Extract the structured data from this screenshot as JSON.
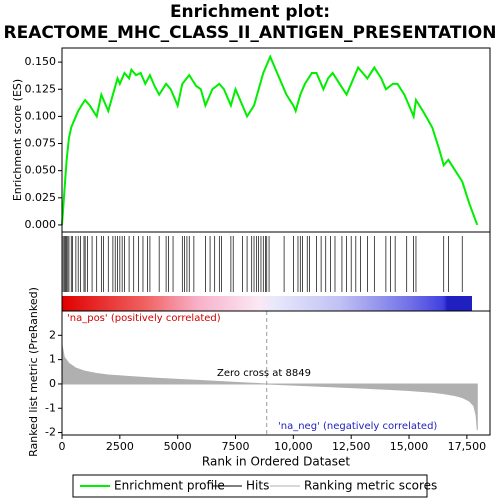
{
  "chart_data": [
    {
      "type": "line",
      "title": [
        "Enrichment plot:",
        "REACTOME_MHC_CLASS_II_ANTIGEN_PRESENTATION"
      ],
      "ylabel": "Enrichment score (ES)",
      "x": [
        0,
        100,
        200,
        300,
        400,
        500,
        700,
        900,
        1000,
        1200,
        1500,
        1700,
        1800,
        2000,
        2200,
        2400,
        2500,
        2700,
        2900,
        3000,
        3200,
        3400,
        3600,
        3800,
        4000,
        4200,
        4500,
        4700,
        5000,
        5200,
        5500,
        5800,
        6000,
        6200,
        6500,
        6800,
        7000,
        7300,
        7500,
        7800,
        8000,
        8300,
        8500,
        8700,
        8900,
        9000,
        9300,
        9700,
        10000,
        10100,
        10300,
        10500,
        10800,
        11000,
        11300,
        11500,
        11700,
        12000,
        12300,
        12500,
        12800,
        13000,
        13200,
        13500,
        13800,
        14000,
        14300,
        14500,
        14800,
        15000,
        15200,
        15300,
        15600,
        16000,
        16300,
        16500,
        16700,
        17000,
        17300,
        17600,
        17950
      ],
      "series": [
        {
          "name": "Enrichment profile",
          "color": "#00ee00",
          "values": [
            0,
            0.03,
            0.06,
            0.08,
            0.09,
            0.095,
            0.105,
            0.112,
            0.115,
            0.11,
            0.1,
            0.12,
            0.115,
            0.105,
            0.12,
            0.135,
            0.13,
            0.14,
            0.135,
            0.143,
            0.138,
            0.14,
            0.13,
            0.138,
            0.128,
            0.12,
            0.13,
            0.125,
            0.11,
            0.13,
            0.138,
            0.128,
            0.125,
            0.11,
            0.125,
            0.13,
            0.125,
            0.11,
            0.125,
            0.11,
            0.1,
            0.11,
            0.125,
            0.14,
            0.15,
            0.155,
            0.14,
            0.12,
            0.11,
            0.105,
            0.12,
            0.13,
            0.14,
            0.14,
            0.125,
            0.135,
            0.14,
            0.13,
            0.12,
            0.13,
            0.145,
            0.14,
            0.135,
            0.145,
            0.135,
            0.125,
            0.13,
            0.13,
            0.12,
            0.11,
            0.1,
            0.115,
            0.105,
            0.09,
            0.07,
            0.055,
            0.06,
            0.05,
            0.04,
            0.02,
            0
          ]
        }
      ],
      "xlim": [
        0,
        18500
      ],
      "ylim": [
        -0.0065,
        0.163
      ],
      "yticks": [
        {
          "value": 0,
          "label": "0.000"
        },
        {
          "value": 0.025,
          "label": "0.025"
        },
        {
          "value": 0.05,
          "label": "0.050"
        },
        {
          "value": 0.075,
          "label": "0.075"
        },
        {
          "value": 0.1,
          "label": "0.100"
        },
        {
          "value": 0.125,
          "label": "0.125"
        },
        {
          "value": 0.15,
          "label": "0.150"
        }
      ]
    },
    {
      "type": "rug",
      "series": [
        {
          "name": "Hits",
          "color": "#000000",
          "x": [
            50,
            100,
            150,
            200,
            250,
            300,
            400,
            450,
            600,
            700,
            800,
            950,
            1000,
            1100,
            1300,
            1500,
            1700,
            1800,
            2000,
            2200,
            2300,
            2400,
            2500,
            2600,
            2700,
            2900,
            3100,
            3300,
            3500,
            3700,
            3800,
            4200,
            4500,
            4600,
            4800,
            5200,
            5300,
            5400,
            5500,
            5700,
            6200,
            6400,
            6600,
            6800,
            6900,
            7300,
            7400,
            7800,
            8000,
            8200,
            8300,
            8400,
            8500,
            8600,
            8700,
            8800,
            8850,
            8950,
            9600,
            10000,
            10200,
            10300,
            10400,
            10600,
            10700,
            11000,
            11200,
            11400,
            11600,
            11800,
            12100,
            12300,
            12500,
            12700,
            12900,
            13200,
            13500,
            14000,
            14200,
            14400,
            14900,
            15200,
            15300,
            16500,
            16700,
            17300
          ]
        }
      ],
      "xlim": [
        0,
        18500
      ]
    },
    {
      "type": "area",
      "ylabel": "Ranked list metric (PreRanked)",
      "xlabel": "Rank in Ordered Dataset",
      "x": [
        0,
        100,
        300,
        600,
        1000,
        1500,
        2000,
        3000,
        4000,
        5000,
        6000,
        7000,
        8000,
        8849,
        10000,
        11000,
        12000,
        13000,
        14000,
        15000,
        16000,
        16500,
        17000,
        17300,
        17600,
        17800,
        17900,
        17950
      ],
      "series": [
        {
          "name": "Ranking metric scores",
          "color": "#b0b0b0",
          "values": [
            1.6,
            1.1,
            0.85,
            0.65,
            0.52,
            0.43,
            0.37,
            0.3,
            0.24,
            0.19,
            0.14,
            0.09,
            0.04,
            0,
            -0.05,
            -0.09,
            -0.13,
            -0.17,
            -0.22,
            -0.27,
            -0.34,
            -0.4,
            -0.48,
            -0.56,
            -0.7,
            -0.9,
            -1.3,
            -1.9
          ]
        }
      ],
      "xlim": [
        0,
        18500
      ],
      "ylim": [
        -2.1,
        3
      ],
      "yticks": [
        -2,
        -1,
        0,
        1,
        2
      ],
      "xticks": [
        0,
        2500,
        5000,
        7500,
        {
          "value": 10000,
          "label": "10,000"
        },
        {
          "value": 12500,
          "label": "12,500"
        },
        {
          "value": 15000,
          "label": "15,000"
        },
        {
          "value": 17500,
          "label": "17,500"
        }
      ],
      "zero_cross": 8849,
      "annotations": [
        "'na_pos' (positively correlated)",
        "Zero cross at 8849",
        "'na_neg' (negatively correlated)"
      ]
    }
  ]
}
